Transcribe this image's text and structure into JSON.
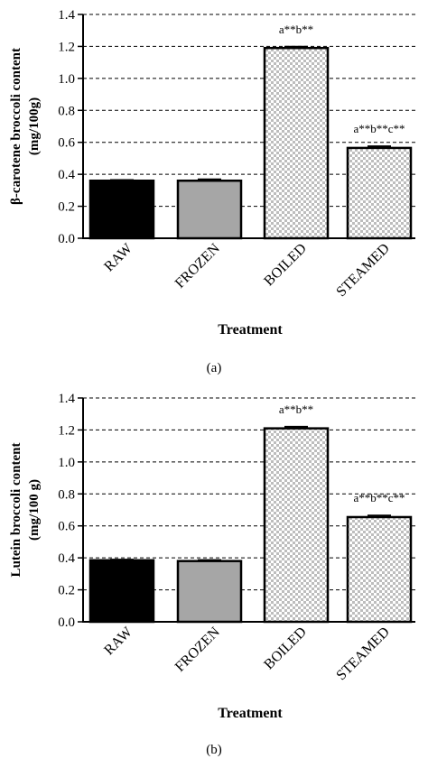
{
  "chart_data": [
    {
      "type": "bar",
      "panel_label": "(a)",
      "categories": [
        "RAW",
        "FROZEN",
        "BOILED",
        "STEAMED"
      ],
      "values": [
        0.36,
        0.36,
        1.19,
        0.565
      ],
      "errors": [
        0.004,
        0.008,
        0.008,
        0.01
      ],
      "annotations": [
        "",
        "",
        "a**b**",
        "a**b**c**"
      ],
      "ylabel_line1": "β-carotene broccoli content",
      "ylabel_line2": "(mg/100g)",
      "xlabel": "Treatment",
      "ylim": [
        0,
        1.4
      ],
      "yticks": [
        "0.0",
        "0.2",
        "0.4",
        "0.6",
        "0.8",
        "1.0",
        "1.2",
        "1.4"
      ],
      "grid": "horizontal dashed",
      "bar_fills": [
        "solid black",
        "grey",
        "checkered",
        "checkered"
      ]
    },
    {
      "type": "bar",
      "panel_label": "(b)",
      "categories": [
        "RAW",
        "FROZEN",
        "BOILED",
        "STEAMED"
      ],
      "values": [
        0.385,
        0.38,
        1.21,
        0.655
      ],
      "errors": [
        0.004,
        0.006,
        0.01,
        0.01
      ],
      "annotations": [
        "",
        "",
        "a**b**",
        "a**b**c**"
      ],
      "ylabel_line1": "Lutein broccoli content",
      "ylabel_line2": "(mg/100 g)",
      "xlabel": "Treatment",
      "ylim": [
        0,
        1.4
      ],
      "yticks": [
        "0.0",
        "0.2",
        "0.4",
        "0.6",
        "0.8",
        "1.0",
        "1.2",
        "1.4"
      ],
      "grid": "horizontal dashed",
      "bar_fills": [
        "solid black",
        "grey",
        "checkered",
        "checkered"
      ]
    }
  ],
  "colors": {
    "axis": "#000000",
    "bar_black": "#000000",
    "bar_grey": "#a6a6a6",
    "checker_light": "#ffffff",
    "checker_dark": "#bdbdbd"
  }
}
